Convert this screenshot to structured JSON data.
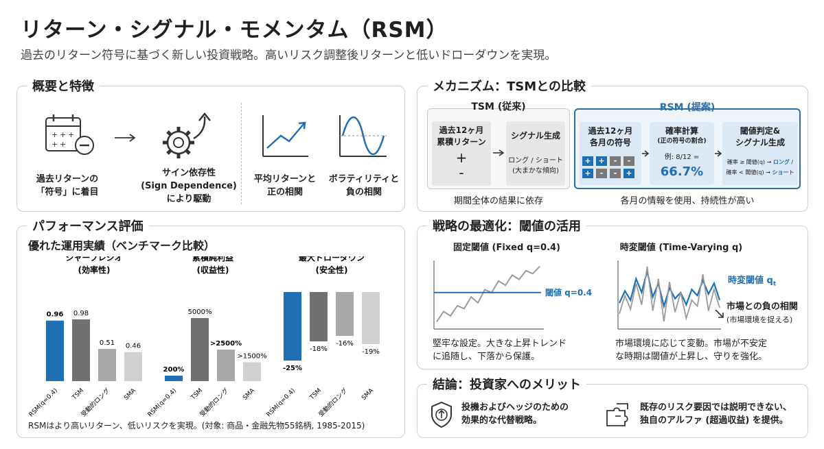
{
  "header": {
    "title": "リターン・シグナル・モメンタム（RSM）",
    "subtitle": "過去のリターン符号に基づく新しい投資戦略。高いリスク調整後リターンと低いドローダウンを実現。"
  },
  "overview": {
    "title": "概要と特徴",
    "step1_line1": "過去リターンの",
    "step1_line2": "「符号」に着目",
    "step2_line1": "サイン依存性",
    "step2_line2": "(Sign Dependence)",
    "step2_line3": "により駆動",
    "item3_line1": "平均リターンと",
    "item3_line2": "正の相関",
    "item4_line1": "ボラティリティと",
    "item4_line2": "負の相関"
  },
  "mechanism": {
    "title": "メカニズム：TSMとの比較",
    "tsm_title": "TSM (従来)",
    "tsm_box1_line1": "過去12ヶ月",
    "tsm_box1_line2": "累積リターン",
    "tsm_plus": "+",
    "tsm_minus": "-",
    "tsm_box2_title": "シグナル生成",
    "tsm_box2_line1": "ロング / ショート",
    "tsm_box2_line2": "(大まかな傾向)",
    "tsm_caption": "期間全体の結果に依存",
    "rsm_title": "RSM (提案)",
    "rsm_box1_line1": "過去12ヶ月",
    "rsm_box1_line2": "各月の符号",
    "rsm_signs_row1": [
      "+",
      "+",
      "-",
      "-"
    ],
    "rsm_signs_row2": [
      "+",
      "-",
      "-",
      "+"
    ],
    "rsm_box2_line1": "確率計算",
    "rsm_box2_line2": "(正の符号の割合)",
    "rsm_box2_example": "例: 8/12 =",
    "rsm_box2_value": "66.7%",
    "rsm_box3_line1": "閾値判定&",
    "rsm_box3_line2": "シグナル生成",
    "rsm_rule1_a": "確率 ≥ 閾値(q) → ",
    "rsm_rule1_b": "ロング",
    "rsm_rule1_c": " /",
    "rsm_rule2_a": "確率 < 閾値(q) → ",
    "rsm_rule2_b": "ショート",
    "rsm_caption": "各月の情報を使用、持続性が高い",
    "colors": {
      "positive": "#1f6fb5",
      "negative": "#7a7a7a"
    }
  },
  "performance": {
    "title": "パフォーマンス評価",
    "subtitle": "優れた運用実績（ベンチマーク比較）",
    "footer": "RSMはより高いリターン、低いリスクを実現。(対象: 商品・金融先物55銘柄, 1985-2015)",
    "colors": [
      "#1f6fb5",
      "#707070",
      "#a8a8a8",
      "#d0d0d0"
    ]
  },
  "chart_data": [
    {
      "type": "bar",
      "title": "シャープレシオ",
      "subtitle": "(効率性)",
      "categories": [
        "RSM(q=0.4)",
        "TSM",
        "受動的ロング",
        "SMA"
      ],
      "values": [
        0.96,
        0.98,
        0.51,
        0.46
      ],
      "labels": [
        "0.96",
        "0.98",
        "0.51",
        "0.46"
      ]
    },
    {
      "type": "bar",
      "title": "累積純利益",
      "subtitle": "(収益性)",
      "categories": [
        "RSM(q=0.4)",
        "TSM",
        "受動的ロング",
        "SMA"
      ],
      "values": [
        200,
        5000,
        2500,
        1500
      ],
      "labels": [
        "200%",
        "5000%",
        ">2500%",
        ">1500%"
      ]
    },
    {
      "type": "bar",
      "title": "最大ドローダウン",
      "subtitle": "(安全性)",
      "categories": [
        "RSM(q=0.4)",
        "TSM",
        "受動的ロング",
        "SMA"
      ],
      "values": [
        -25,
        -18,
        -16,
        -19
      ],
      "labels": [
        "-25%",
        "-18%",
        "-16%",
        "-19%"
      ]
    },
    {
      "type": "line",
      "title": "固定閾値 (Fixed q=0.4)",
      "annotation": "閾値 q=0.4",
      "series": [
        {
          "name": "",
          "values": [
            0.2,
            0.27,
            0.24,
            0.31,
            0.29,
            0.37,
            0.33,
            0.42,
            0.4,
            0.48,
            0.45,
            0.52,
            0.49,
            0.55,
            0.53,
            0.58
          ]
        }
      ],
      "threshold": 0.4
    },
    {
      "type": "line",
      "title": "時変閾値 (Time-Varying q)",
      "series": [
        {
          "name": "時変閾値 q_t",
          "values": [
            0.42,
            0.5,
            0.44,
            0.58,
            0.49,
            0.63,
            0.46,
            0.55,
            0.4,
            0.52,
            0.45,
            0.49,
            0.41,
            0.51,
            0.47,
            0.57,
            0.48,
            0.55,
            0.44
          ]
        },
        {
          "name": "",
          "values": [
            0.35,
            0.47,
            0.38,
            0.55,
            0.41,
            0.66,
            0.37,
            0.58,
            0.3,
            0.56,
            0.36,
            0.49,
            0.32,
            0.44,
            0.4,
            0.61,
            0.37,
            0.51,
            0.39
          ]
        }
      ]
    }
  ],
  "optimization": {
    "title": "戦略の最適化：閾値の活用",
    "fixed_caption_line1": "堅牢な設定。大きな上昇トレンド",
    "fixed_caption_line2": "に追随し、下落から保護。",
    "tv_label_prefix": "時変閾値 q",
    "tv_label_sub": "t",
    "tv_corr_line1": "市場との負の相関",
    "tv_corr_line2": "(市場環境を捉える)",
    "tv_caption_line1": "市場環境に応じて変動。市場が不安定",
    "tv_caption_line2": "な時期は閾値が上昇し、守りを強化。"
  },
  "conclusion": {
    "title": "結論：投資家へのメリット",
    "item1_line1": "投機およびヘッジのための",
    "item1_line2": "効果的な代替戦略。",
    "item2_line1": "既存のリスク要因では説明できない、",
    "item2_line2": "独自のアルファ (超過収益) を提供。"
  }
}
